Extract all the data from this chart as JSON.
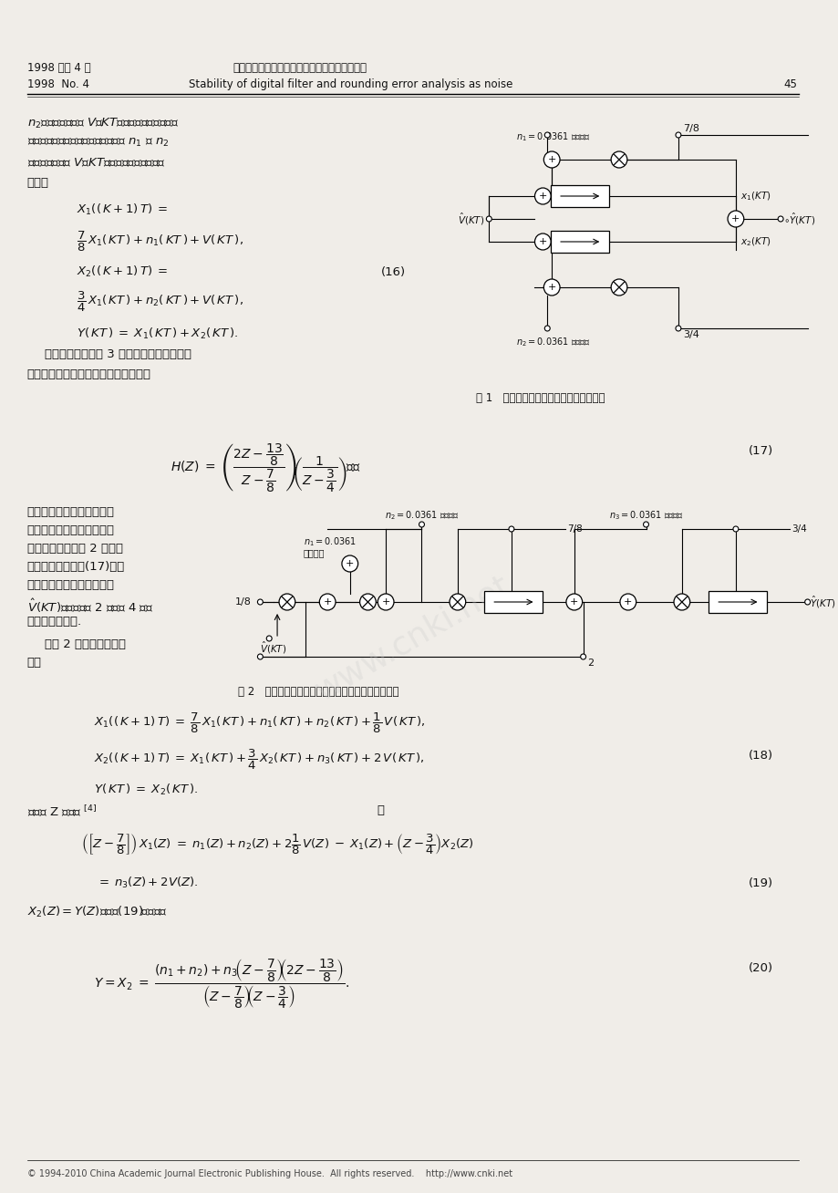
{
  "page_width": 9.2,
  "page_height": 13.08,
  "dpi": 100,
  "bg_color": "#f0ede8",
  "text_color": "#111111",
  "header_left1": "1998 年第 4 期",
  "header_center1": "杜存纲等：数字滤波器的稳定性及舍入误差分析",
  "header_left2": "1998  No. 4",
  "header_center2": "Stability of digital filter and rounding error analysis as noise",
  "header_right2": "45",
  "footer_text": "© 1994-2010 China Academic Journal Electronic Publishing House.  All rights reserved.    http://www.cnki.net"
}
